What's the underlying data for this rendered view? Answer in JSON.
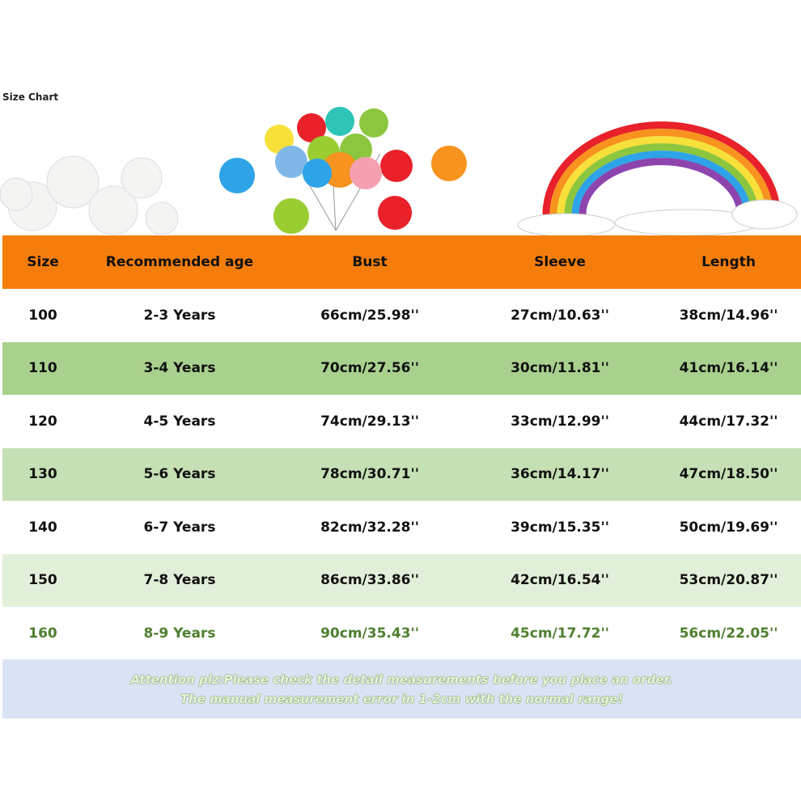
{
  "header": {
    "title": "Size Chart"
  },
  "table": {
    "columns": [
      "Size",
      "Recommended age",
      "Bust",
      "Sleeve",
      "Length"
    ],
    "rows": [
      [
        "100",
        "2-3 Years",
        "66cm/25.98''",
        "27cm/10.63''",
        "38cm/14.96''"
      ],
      [
        "110",
        "3-4 Years",
        "70cm/27.56''",
        "30cm/11.81''",
        "41cm/16.14''"
      ],
      [
        "120",
        "4-5 Years",
        "74cm/29.13''",
        "33cm/12.99''",
        "44cm/17.32''"
      ],
      [
        "130",
        "5-6 Years",
        "78cm/30.71''",
        "36cm/14.17''",
        "47cm/18.50''"
      ],
      [
        "140",
        "6-7 Years",
        "82cm/32.28''",
        "39cm/15.35''",
        "50cm/19.69''"
      ],
      [
        "150",
        "7-8 Years",
        "86cm/33.86''",
        "42cm/16.54''",
        "53cm/20.87''"
      ],
      [
        "160",
        "8-9 Years",
        "90cm/35.43''",
        "45cm/17.72''",
        "56cm/22.05''"
      ]
    ]
  },
  "note": {
    "lines": [
      "Attention plz:Please check the detail measurements before you place an order.",
      "The manual measurement error in 1-2cm with the normal range!"
    ]
  }
}
